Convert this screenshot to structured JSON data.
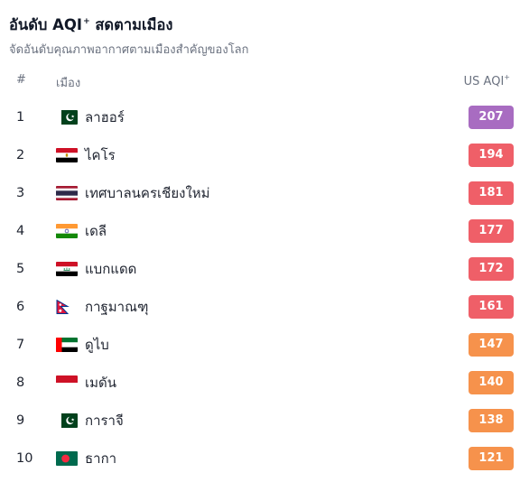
{
  "header": {
    "title": "อันดับ AQI",
    "title_sup": "+",
    "subtitle": "จัดอันดับคุณภาพอากาศตามเมืองสำคัญของโลก"
  },
  "columns": {
    "rank": "#",
    "city": "เมือง",
    "aqi": "US AQI",
    "aqi_sup": "+"
  },
  "title_suffix": "สดตามเมือง",
  "colors": {
    "very_unhealthy": "#a86cc1",
    "unhealthy": "#ef5f68",
    "unhealthy_sensitive": "#f6924c"
  },
  "rows": [
    {
      "rank": "1",
      "flag": "pakistan-flag-icon",
      "city": "ลาฮอร์",
      "aqi": "207",
      "color": "#a86cc1"
    },
    {
      "rank": "2",
      "flag": "egypt-flag-icon",
      "city": "ไคโร",
      "aqi": "194",
      "color": "#ef5f68"
    },
    {
      "rank": "3",
      "flag": "thailand-flag-icon",
      "city": "เทศบาลนครเชียงใหม่",
      "aqi": "181",
      "color": "#ef5f68"
    },
    {
      "rank": "4",
      "flag": "india-flag-icon",
      "city": "เดลี",
      "aqi": "177",
      "color": "#ef5f68"
    },
    {
      "rank": "5",
      "flag": "iraq-flag-icon",
      "city": "แบกแดด",
      "aqi": "172",
      "color": "#ef5f68"
    },
    {
      "rank": "6",
      "flag": "nepal-flag-icon",
      "city": "กาฐมาณฑุ",
      "aqi": "161",
      "color": "#ef5f68"
    },
    {
      "rank": "7",
      "flag": "uae-flag-icon",
      "city": "ดูไบ",
      "aqi": "147",
      "color": "#f6924c"
    },
    {
      "rank": "8",
      "flag": "indonesia-flag-icon",
      "city": "เมดัน",
      "aqi": "140",
      "color": "#f6924c"
    },
    {
      "rank": "9",
      "flag": "pakistan-flag-icon",
      "city": "การาจี",
      "aqi": "138",
      "color": "#f6924c"
    },
    {
      "rank": "10",
      "flag": "bangladesh-flag-icon",
      "city": "ธากา",
      "aqi": "121",
      "color": "#f6924c"
    }
  ]
}
